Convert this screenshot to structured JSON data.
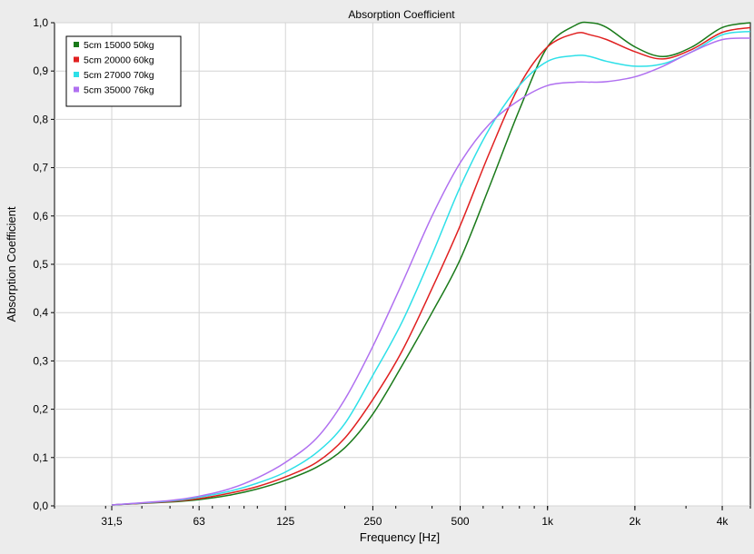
{
  "chart_data": {
    "type": "line",
    "title": "Absorption Coefficient",
    "xlabel": "Frequency [Hz]",
    "ylabel": "Absorption Coefficient",
    "x_scale": "log",
    "xlim": [
      20,
      5000
    ],
    "ylim": [
      0,
      1
    ],
    "grid": true,
    "legend_position": "top-left",
    "x_ticks": [
      {
        "value": 31.5,
        "label": "31,5"
      },
      {
        "value": 63,
        "label": "63"
      },
      {
        "value": 125,
        "label": "125"
      },
      {
        "value": 250,
        "label": "250"
      },
      {
        "value": 500,
        "label": "500"
      },
      {
        "value": 1000,
        "label": "1k"
      },
      {
        "value": 2000,
        "label": "2k"
      },
      {
        "value": 4000,
        "label": "4k"
      }
    ],
    "y_ticks": [
      {
        "value": 0.0,
        "label": "0,0"
      },
      {
        "value": 0.1,
        "label": "0,1"
      },
      {
        "value": 0.2,
        "label": "0,2"
      },
      {
        "value": 0.3,
        "label": "0,3"
      },
      {
        "value": 0.4,
        "label": "0,4"
      },
      {
        "value": 0.5,
        "label": "0,5"
      },
      {
        "value": 0.6,
        "label": "0,6"
      },
      {
        "value": 0.7,
        "label": "0,7"
      },
      {
        "value": 0.8,
        "label": "0,8"
      },
      {
        "value": 0.9,
        "label": "0,9"
      },
      {
        "value": 1.0,
        "label": "1,0"
      }
    ],
    "series": [
      {
        "name": "5cm 15000 50kg",
        "color": "#1a7a1a",
        "x": [
          31.5,
          50,
          63,
          80,
          100,
          125,
          160,
          200,
          250,
          315,
          400,
          500,
          630,
          800,
          1000,
          1250,
          1400,
          1600,
          2000,
          2500,
          3150,
          4000,
          5000
        ],
        "y": [
          0.002,
          0.008,
          0.013,
          0.022,
          0.035,
          0.053,
          0.08,
          0.12,
          0.19,
          0.29,
          0.4,
          0.51,
          0.66,
          0.82,
          0.95,
          0.995,
          1.0,
          0.99,
          0.95,
          0.93,
          0.95,
          0.99,
          1.0
        ]
      },
      {
        "name": "5cm 20000 60kg",
        "color": "#e02020",
        "x": [
          31.5,
          50,
          63,
          80,
          100,
          125,
          160,
          200,
          250,
          315,
          400,
          500,
          630,
          800,
          1000,
          1250,
          1400,
          1600,
          2000,
          2500,
          3150,
          4000,
          5000
        ],
        "y": [
          0.002,
          0.009,
          0.015,
          0.026,
          0.04,
          0.06,
          0.09,
          0.14,
          0.22,
          0.32,
          0.45,
          0.58,
          0.73,
          0.87,
          0.95,
          0.978,
          0.975,
          0.965,
          0.94,
          0.925,
          0.945,
          0.98,
          0.99
        ]
      },
      {
        "name": "5cm 27000 70kg",
        "color": "#2ee0e8",
        "x": [
          31.5,
          50,
          63,
          80,
          100,
          125,
          160,
          200,
          250,
          315,
          400,
          500,
          630,
          800,
          1000,
          1250,
          1400,
          1600,
          2000,
          2500,
          3150,
          4000,
          5000
        ],
        "y": [
          0.002,
          0.01,
          0.018,
          0.03,
          0.047,
          0.07,
          0.11,
          0.17,
          0.27,
          0.38,
          0.52,
          0.66,
          0.78,
          0.87,
          0.92,
          0.932,
          0.93,
          0.92,
          0.91,
          0.915,
          0.94,
          0.975,
          0.982
        ]
      },
      {
        "name": "5cm 35000 76kg",
        "color": "#b070f0",
        "x": [
          31.5,
          50,
          63,
          80,
          100,
          125,
          160,
          200,
          250,
          315,
          400,
          500,
          630,
          800,
          1000,
          1250,
          1400,
          1600,
          2000,
          2500,
          3150,
          4000,
          5000
        ],
        "y": [
          0.002,
          0.011,
          0.02,
          0.035,
          0.058,
          0.09,
          0.14,
          0.22,
          0.33,
          0.46,
          0.6,
          0.71,
          0.79,
          0.84,
          0.87,
          0.877,
          0.877,
          0.878,
          0.888,
          0.91,
          0.94,
          0.965,
          0.968
        ]
      }
    ]
  }
}
